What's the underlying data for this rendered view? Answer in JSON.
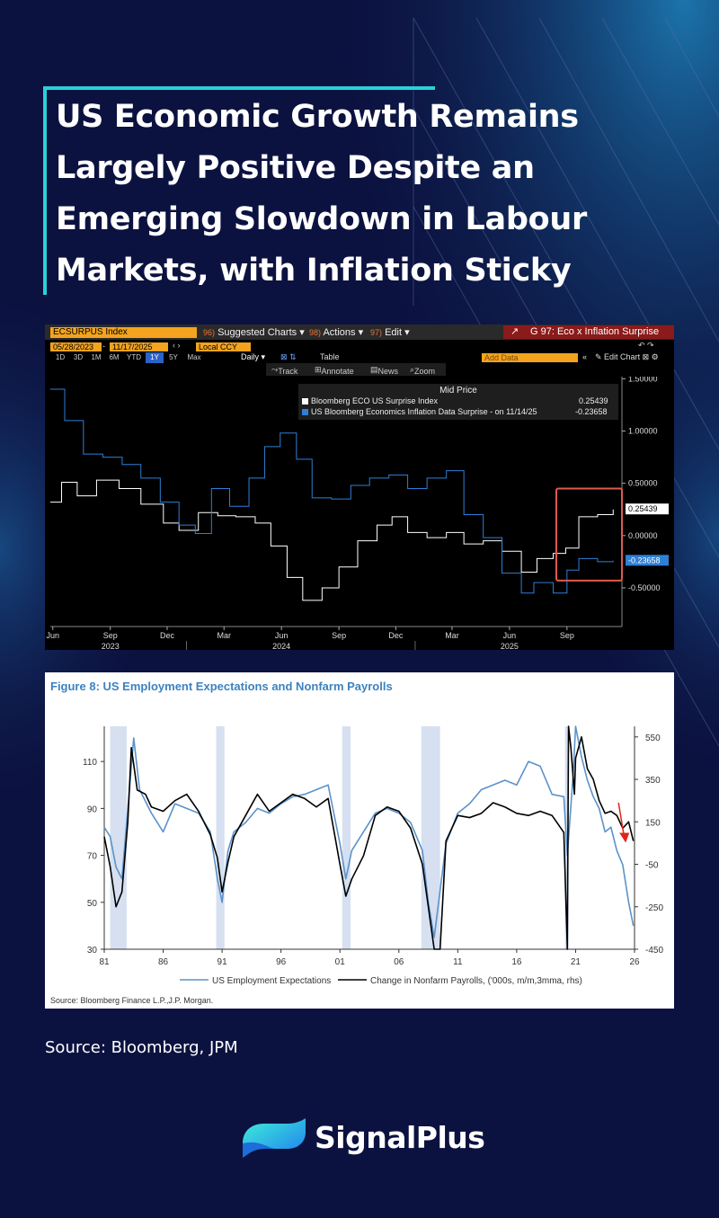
{
  "title": "US Economic Growth Remains Largely Positive Despite an Emerging Slowdown in Labour Markets, with Inflation Sticky",
  "colors": {
    "background": "#0c1240",
    "accent": "#2ad0d8",
    "bbg_orange": "#f3a31d",
    "bbg_blue": "#2f7fd6",
    "highlight": "#e05a50",
    "fig_blue": "#5b93c9",
    "fig_shade": "#d6e0f1"
  },
  "terminal": {
    "ticker": "ECSURPUS Index",
    "menu": [
      "Suggested Charts",
      "Actions",
      "Edit"
    ],
    "menu_codes": [
      "96)",
      "98)",
      "97)"
    ],
    "chart_title": "G 97: Eco x Inflation Surprise",
    "start_date": "05/28/2023",
    "end_date": "11/17/2025",
    "currency": "Local CCY",
    "periods": [
      "1D",
      "3D",
      "1M",
      "6M",
      "YTD",
      "1Y",
      "5Y",
      "Max"
    ],
    "active_period": "1Y",
    "frequency": "Daily",
    "table_label": "Table",
    "add_data": "Add Data",
    "edit_chart": "Edit Chart",
    "tools": [
      "Track",
      "Annotate",
      "News",
      "Zoom"
    ]
  },
  "chart_data": [
    {
      "type": "line",
      "legend_title": "Mid Price",
      "series": [
        {
          "name": "Bloomberg ECO US Surprise Index",
          "last": "0.25439",
          "color": "#ffffff",
          "x": [
            "2023-05-28",
            "2023-06-15",
            "2023-07-10",
            "2023-08-10",
            "2023-09-15",
            "2023-10-20",
            "2023-11-25",
            "2023-12-20",
            "2024-01-20",
            "2024-02-20",
            "2024-03-20",
            "2024-04-20",
            "2024-05-15",
            "2024-06-10",
            "2024-07-05",
            "2024-08-05",
            "2024-09-01",
            "2024-10-01",
            "2024-11-01",
            "2024-11-25",
            "2024-12-20",
            "2025-01-20",
            "2025-02-20",
            "2025-03-20",
            "2025-04-20",
            "2025-05-20",
            "2025-06-20",
            "2025-07-15",
            "2025-08-10",
            "2025-08-30",
            "2025-09-20",
            "2025-10-20",
            "2025-11-14"
          ],
          "y": [
            0.32,
            0.51,
            0.38,
            0.53,
            0.45,
            0.3,
            0.12,
            0.05,
            0.22,
            0.19,
            0.18,
            0.12,
            -0.1,
            -0.4,
            -0.62,
            -0.5,
            -0.3,
            -0.05,
            0.1,
            0.18,
            0.03,
            -0.02,
            0.03,
            -0.08,
            -0.05,
            -0.15,
            -0.35,
            -0.22,
            -0.17,
            -0.12,
            0.18,
            0.2,
            0.25
          ]
        },
        {
          "name": "US Bloomberg Economics Inflation Data Surprise - on 11/14/25",
          "last": "-0.23658",
          "color": "#2f7fd6",
          "x": [
            "2023-05-28",
            "2023-06-20",
            "2023-07-20",
            "2023-08-20",
            "2023-09-20",
            "2023-10-20",
            "2023-11-20",
            "2023-12-20",
            "2024-01-15",
            "2024-02-10",
            "2024-03-10",
            "2024-04-10",
            "2024-05-05",
            "2024-05-30",
            "2024-06-25",
            "2024-07-20",
            "2024-08-20",
            "2024-09-20",
            "2024-10-20",
            "2024-11-20",
            "2024-12-20",
            "2025-01-20",
            "2025-02-20",
            "2025-03-20",
            "2025-04-20",
            "2025-05-20",
            "2025-06-20",
            "2025-07-10",
            "2025-08-10",
            "2025-09-01",
            "2025-09-20",
            "2025-10-20",
            "2025-11-14"
          ],
          "y": [
            1.4,
            1.1,
            0.78,
            0.75,
            0.68,
            0.55,
            0.32,
            0.1,
            0.02,
            0.45,
            0.28,
            0.55,
            0.85,
            0.98,
            0.73,
            0.36,
            0.35,
            0.48,
            0.55,
            0.58,
            0.45,
            0.55,
            0.62,
            0.2,
            -0.02,
            -0.36,
            -0.55,
            -0.45,
            -0.55,
            -0.33,
            -0.22,
            -0.25,
            -0.24
          ]
        }
      ],
      "y_ticks": [
        "1.50000",
        "1.00000",
        "0.50000",
        "0.00000",
        "-0.50000"
      ],
      "ylim": [
        -0.87,
        1.52
      ],
      "xlim": [
        "2023-05-28",
        "2025-11-28"
      ],
      "x_tick_labels": [
        "Jun",
        "Sep",
        "Dec",
        "Mar",
        "Jun",
        "Sep",
        "Dec",
        "Mar",
        "Jun",
        "Sep"
      ],
      "x_tick_dates": [
        "2023-06-01",
        "2023-09-01",
        "2023-12-01",
        "2024-03-01",
        "2024-06-01",
        "2024-09-01",
        "2024-12-01",
        "2025-03-01",
        "2025-06-01",
        "2025-09-01"
      ],
      "year_labels": [
        "2023",
        "2024",
        "2025"
      ],
      "year_label_dates": [
        "2023-09-01",
        "2024-06-01",
        "2025-06-01"
      ],
      "highlight_box": {
        "x_from": "2025-08-15",
        "x_to": "2025-11-28",
        "y_from": -0.43,
        "y_to": 0.45
      }
    },
    {
      "type": "line",
      "title": "Figure 8: US Employment Expectations and Nonfarm Payrolls",
      "source": "Source: Bloomberg Finance L.P.,J.P. Morgan.",
      "x_ticks": [
        "81",
        "86",
        "91",
        "96",
        "01",
        "06",
        "11",
        "16",
        "21",
        "26"
      ],
      "y_ticks_left": [
        "110",
        "90",
        "70",
        "50",
        "30"
      ],
      "y_ticks_right": [
        "550",
        "350",
        "150",
        "-50",
        "-250",
        "-450"
      ],
      "ylim_left": [
        30,
        125
      ],
      "ylim_right": [
        -450,
        600
      ],
      "xlim": [
        1981,
        2026
      ],
      "recessions": [
        [
          1981.5,
          1982.9
        ],
        [
          1990.5,
          1991.2
        ],
        [
          2001.2,
          2001.9
        ],
        [
          2007.9,
          2009.5
        ],
        [
          2020.1,
          2020.4
        ]
      ],
      "series": [
        {
          "name": "US Employment Expectations",
          "axis": "left",
          "color": "#5b93c9",
          "x": [
            1981,
            1981.5,
            1982,
            1982.5,
            1983,
            1983.5,
            1984,
            1985,
            1986,
            1987,
            1988,
            1989,
            1990,
            1990.6,
            1991,
            1991.5,
            1992,
            1993,
            1994,
            1995,
            1996,
            1997,
            1998,
            1999,
            2000,
            2001,
            2001.5,
            2002,
            2003,
            2004,
            2005,
            2006,
            2007,
            2008,
            2008.5,
            2009,
            2009.5,
            2010,
            2011,
            2012,
            2013,
            2014,
            2015,
            2016,
            2017,
            2018,
            2019,
            2020,
            2020.3,
            2020.8,
            2021,
            2021.5,
            2022,
            2022.5,
            2023,
            2023.5,
            2024,
            2024.5,
            2025,
            2025.5,
            2025.9
          ],
          "y": [
            82,
            78,
            65,
            60,
            90,
            120,
            98,
            88,
            80,
            92,
            90,
            88,
            80,
            60,
            50,
            72,
            80,
            84,
            90,
            88,
            92,
            95,
            96,
            98,
            100,
            75,
            60,
            72,
            80,
            88,
            90,
            88,
            84,
            72,
            50,
            35,
            55,
            75,
            88,
            92,
            98,
            100,
            102,
            100,
            110,
            108,
            96,
            95,
            70,
            105,
            125,
            112,
            102,
            95,
            90,
            80,
            82,
            72,
            66,
            50,
            40
          ]
        },
        {
          "name": "Change in Nonfarm Payrolls, ('000s, m/m,3mma, rhs)",
          "axis": "right",
          "color": "#000000",
          "x": [
            1981,
            1981.5,
            1982,
            1982.5,
            1983,
            1983.3,
            1983.8,
            1984.5,
            1985,
            1986,
            1987,
            1988,
            1989,
            1990,
            1990.6,
            1991,
            1991.5,
            1992,
            1993,
            1994,
            1995,
            1996,
            1997,
            1998,
            1999,
            2000,
            2001,
            2001.5,
            2002,
            2003,
            2004,
            2005,
            2006,
            2007,
            2008,
            2008.5,
            2009,
            2009.5,
            2010,
            2011,
            2012,
            2013,
            2014,
            2015,
            2016,
            2017,
            2018,
            2019,
            2020,
            2020.3,
            2020.4,
            2020.6,
            2020.9,
            2021,
            2021.5,
            2022,
            2022.5,
            2023,
            2023.5,
            2024,
            2024.5,
            2025,
            2025.5,
            2025.9
          ],
          "y": [
            80,
            -60,
            -250,
            -180,
            150,
            500,
            300,
            280,
            220,
            200,
            250,
            280,
            200,
            90,
            -20,
            -180,
            -40,
            80,
            180,
            280,
            200,
            240,
            280,
            260,
            220,
            260,
            -50,
            -200,
            -120,
            -10,
            180,
            220,
            200,
            120,
            -50,
            -250,
            -600,
            -550,
            60,
            180,
            170,
            190,
            240,
            220,
            190,
            180,
            200,
            180,
            100,
            -600,
            600,
            500,
            280,
            450,
            550,
            400,
            350,
            250,
            190,
            200,
            180,
            120,
            150,
            60
          ]
        }
      ]
    }
  ],
  "source_note": "Source: Bloomberg, JPM",
  "brand": "SignalPlus"
}
